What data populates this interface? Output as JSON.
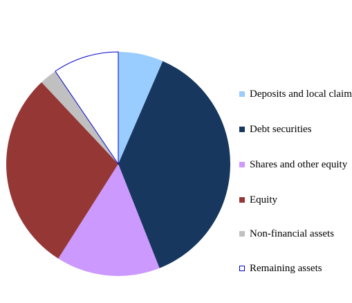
{
  "chart_data": {
    "type": "pie",
    "title": "",
    "start_angle_deg": 0,
    "direction": "clockwise",
    "slices": [
      {
        "label": "Deposits and local claims",
        "value": 6.5,
        "color": "#99CCFF"
      },
      {
        "label": "Debt securities",
        "value": 37.5,
        "color": "#17375E"
      },
      {
        "label": "Shares and other equity",
        "value": 15,
        "color": "#CC99FF"
      },
      {
        "label": "Equity",
        "value": 29,
        "color": "#953735"
      },
      {
        "label": "Non-financial assets",
        "value": 2.5,
        "color": "#C0C0C0"
      },
      {
        "label": "Remaining assets",
        "value": 9.5,
        "color": "#FFFFFF",
        "outline": "#0000CC"
      }
    ],
    "legend_position": "right"
  }
}
